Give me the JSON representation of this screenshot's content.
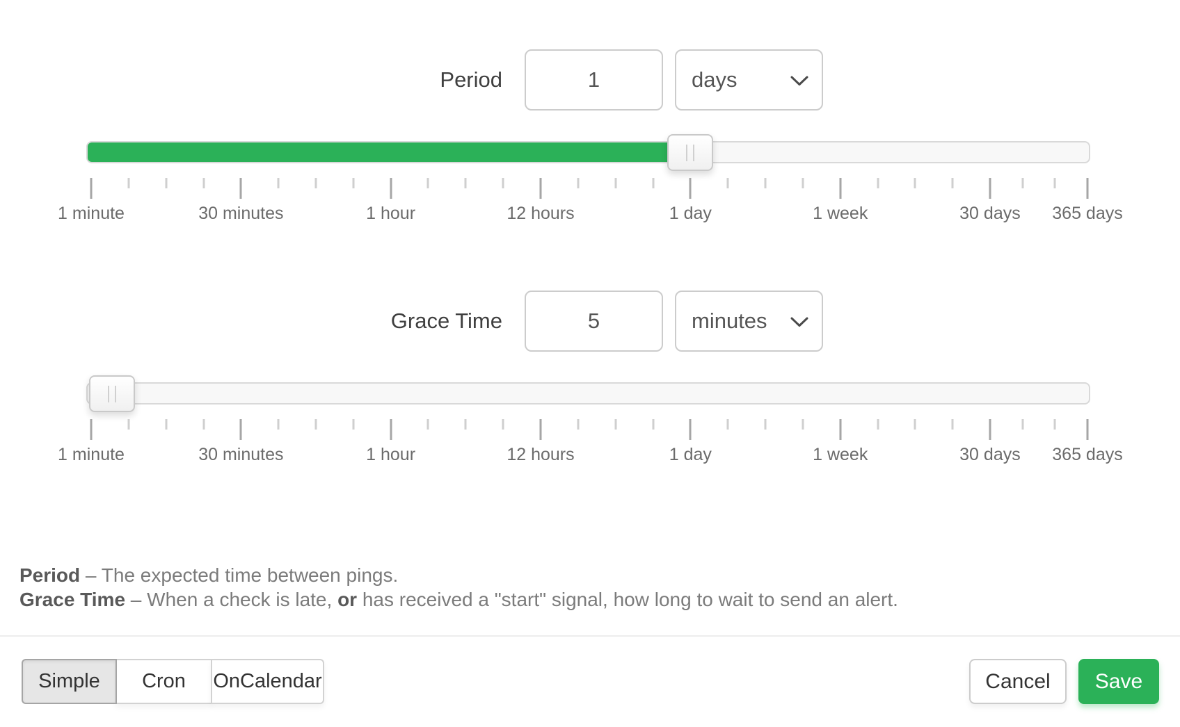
{
  "colors": {
    "accent_green": "#2bb158"
  },
  "period": {
    "label": "Period",
    "value": "1",
    "unit": "days",
    "slider_pct": 60.15
  },
  "grace": {
    "label": "Grace Time",
    "value": "5",
    "unit": "minutes",
    "slider_pct": 2.1
  },
  "scale": {
    "labels": [
      "1 minute",
      "30 minutes",
      "1 hour",
      "12 hours",
      "1 day",
      "1 week",
      "30 days",
      "365 days"
    ],
    "major_pct": [
      0,
      15.04,
      30.07,
      45.11,
      60.15,
      75.19,
      90.22,
      100
    ],
    "minor_pct": [
      3.76,
      7.52,
      11.28,
      18.8,
      22.56,
      26.31,
      33.83,
      37.59,
      41.35,
      48.87,
      52.63,
      56.39,
      63.91,
      67.67,
      71.43,
      78.95,
      82.7,
      86.46,
      93.48,
      96.74
    ]
  },
  "help": {
    "line1_term": "Period",
    "line1_rest": " – The expected time between pings.",
    "line2_term": "Grace Time",
    "line2_a": " – When a check is late, ",
    "line2_or": "or",
    "line2_b": " has received a \"start\" signal, how long to wait to send an alert."
  },
  "footer": {
    "tabs": [
      {
        "label": "Simple",
        "active": true
      },
      {
        "label": "Cron",
        "active": false
      },
      {
        "label": "OnCalendar",
        "active": false
      }
    ],
    "cancel_label": "Cancel",
    "save_label": "Save"
  }
}
